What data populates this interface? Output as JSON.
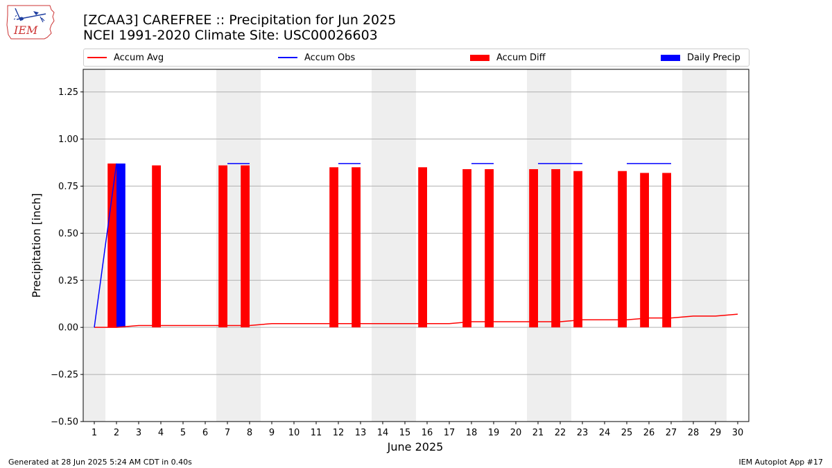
{
  "title": {
    "line1": "[ZCAA3] CAREFREE :: Precipitation for Jun 2025",
    "line2": "NCEI 1991-2020 Climate Site: USC00026603"
  },
  "logo": {
    "text": "IEM",
    "icon": "iem-iowa-logo"
  },
  "legend": {
    "accum_avg": "Accum Avg",
    "accum_obs": "Accum Obs",
    "accum_diff": "Accum Diff",
    "daily_precip": "Daily Precip"
  },
  "footer": {
    "left": "Generated at 28 Jun 2025 5:24 AM CDT in 0.40s",
    "right": "IEM Autoplot App #17"
  },
  "colors": {
    "accum_avg": "#ff0000",
    "accum_obs": "#0000ff",
    "accum_diff": "#ff0000",
    "daily_precip": "#0000ff",
    "weekend_band": "#eeeeee",
    "grid": "#b0b0b0"
  },
  "chart_data": {
    "type": "bar",
    "xlabel": "June 2025",
    "ylabel": "Precipitation [inch]",
    "xlim": [
      0.5,
      30.5
    ],
    "ylim": [
      -0.5,
      1.37
    ],
    "x_ticks": [
      1,
      2,
      3,
      4,
      5,
      6,
      7,
      8,
      9,
      10,
      11,
      12,
      13,
      14,
      15,
      16,
      17,
      18,
      19,
      20,
      21,
      22,
      23,
      24,
      25,
      26,
      27,
      28,
      29,
      30
    ],
    "y_ticks": [
      -0.5,
      -0.25,
      0.0,
      0.25,
      0.5,
      0.75,
      1.0,
      1.25
    ],
    "y_tick_labels": [
      "−0.50",
      "−0.25",
      "0.00",
      "0.25",
      "0.50",
      "0.75",
      "1.00",
      "1.25"
    ],
    "grid": "horizontal",
    "legend_position": "top",
    "weekend_days": [
      1,
      7,
      8,
      14,
      15,
      21,
      22,
      28,
      29
    ],
    "series": [
      {
        "name": "Accum Avg",
        "type": "line",
        "x": [
          1,
          2,
          3,
          4,
          5,
          6,
          7,
          8,
          9,
          10,
          11,
          12,
          13,
          14,
          15,
          16,
          17,
          18,
          19,
          20,
          21,
          22,
          23,
          24,
          25,
          26,
          27,
          28,
          29,
          30
        ],
        "values": [
          0.0,
          0.0,
          0.01,
          0.01,
          0.01,
          0.01,
          0.01,
          0.01,
          0.02,
          0.02,
          0.02,
          0.02,
          0.02,
          0.02,
          0.02,
          0.02,
          0.02,
          0.03,
          0.03,
          0.03,
          0.03,
          0.03,
          0.04,
          0.04,
          0.04,
          0.05,
          0.05,
          0.06,
          0.06,
          0.07
        ]
      },
      {
        "name": "Accum Obs",
        "type": "line",
        "x": [
          1,
          2
        ],
        "values": [
          0.0,
          0.87
        ],
        "daily_steps": [
          {
            "start": 7,
            "end": 8,
            "value": 0.87
          },
          {
            "start": 12,
            "end": 13,
            "value": 0.87
          },
          {
            "start": 18,
            "end": 19,
            "value": 0.87
          },
          {
            "start": 21,
            "end": 23,
            "value": 0.87
          },
          {
            "start": 25,
            "end": 27,
            "value": 0.87
          }
        ]
      },
      {
        "name": "Accum Diff",
        "type": "bar",
        "x": [
          2,
          4,
          7,
          8,
          12,
          13,
          16,
          18,
          19,
          21,
          22,
          23,
          25,
          26,
          27
        ],
        "values": [
          0.87,
          0.86,
          0.86,
          0.86,
          0.85,
          0.85,
          0.85,
          0.84,
          0.84,
          0.84,
          0.84,
          0.83,
          0.83,
          0.82,
          0.82
        ]
      },
      {
        "name": "Daily Precip",
        "type": "bar",
        "x": [
          2
        ],
        "values": [
          0.87
        ]
      }
    ]
  }
}
